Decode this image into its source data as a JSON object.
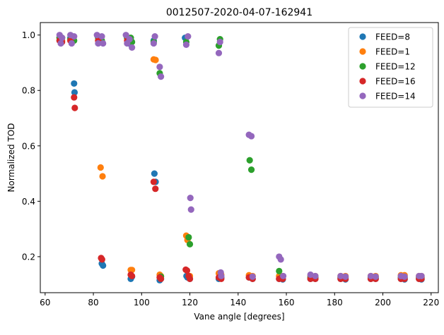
{
  "chart_data": {
    "type": "scatter",
    "title": "0012507-2020-04-07-162941",
    "xlabel": "Vane angle [degrees]",
    "ylabel": "Normalized TOD",
    "xlim": [
      58,
      223
    ],
    "ylim": [
      0.07,
      1.045
    ],
    "xticks": [
      60,
      80,
      100,
      120,
      140,
      160,
      180,
      200,
      220
    ],
    "yticks": [
      0.2,
      0.4,
      0.6,
      0.8,
      1.0
    ],
    "xtick_labels": [
      "60",
      "80",
      "100",
      "120",
      "140",
      "160",
      "180",
      "200",
      "220"
    ],
    "ytick_labels": [
      "0.2",
      "0.4",
      "0.6",
      "0.8",
      "1.0"
    ],
    "grid": false,
    "legend_position": "top-right",
    "series": [
      {
        "name": "FEED=8",
        "color": "#1f77b4",
        "points": [
          [
            66,
            0.98
          ],
          [
            66.5,
            0.99
          ],
          [
            70.5,
            0.99
          ],
          [
            71,
            0.98
          ],
          [
            72,
            0.825
          ],
          [
            72.2,
            0.793
          ],
          [
            82,
            0.99
          ],
          [
            83.2,
            0.98
          ],
          [
            83.5,
            0.175
          ],
          [
            84,
            0.168
          ],
          [
            94,
            0.99
          ],
          [
            94.5,
            0.97
          ],
          [
            95.5,
            0.12
          ],
          [
            96,
            0.128
          ],
          [
            105,
            0.98
          ],
          [
            105.3,
            0.5
          ],
          [
            105.8,
            0.47
          ],
          [
            107.5,
            0.115
          ],
          [
            108,
            0.12
          ],
          [
            118,
            0.99
          ],
          [
            118.6,
            0.13
          ],
          [
            119,
            0.125
          ],
          [
            120,
            0.12
          ],
          [
            132,
            0.12
          ],
          [
            133,
            0.125
          ],
          [
            144.5,
            0.125
          ],
          [
            146,
            0.12
          ],
          [
            157,
            0.12
          ],
          [
            158.5,
            0.118
          ],
          [
            170,
            0.12
          ],
          [
            172,
            0.12
          ],
          [
            182.5,
            0.12
          ],
          [
            184.5,
            0.118
          ],
          [
            195,
            0.12
          ],
          [
            197,
            0.12
          ],
          [
            207.5,
            0.12
          ],
          [
            209,
            0.118
          ],
          [
            215,
            0.12
          ],
          [
            216,
            0.118
          ]
        ]
      },
      {
        "name": "FEED=1",
        "color": "#ff7f0e",
        "points": [
          [
            66,
            0.99
          ],
          [
            67,
            0.98
          ],
          [
            70.5,
            0.98
          ],
          [
            71.5,
            0.99
          ],
          [
            82,
            0.98
          ],
          [
            83,
            0.522
          ],
          [
            83.8,
            0.49
          ],
          [
            94,
            0.99
          ],
          [
            95.5,
            0.152
          ],
          [
            96,
            0.152
          ],
          [
            105,
            0.912
          ],
          [
            105.8,
            0.91
          ],
          [
            107.5,
            0.135
          ],
          [
            108,
            0.13
          ],
          [
            118.5,
            0.276
          ],
          [
            119,
            0.26
          ],
          [
            120,
            0.13
          ],
          [
            132,
            0.14
          ],
          [
            133,
            0.135
          ],
          [
            144.5,
            0.133
          ],
          [
            146,
            0.13
          ],
          [
            157,
            0.13
          ],
          [
            158.5,
            0.13
          ],
          [
            170,
            0.13
          ],
          [
            172,
            0.13
          ],
          [
            182.5,
            0.13
          ],
          [
            184.5,
            0.13
          ],
          [
            195,
            0.13
          ],
          [
            197,
            0.13
          ],
          [
            207.5,
            0.133
          ],
          [
            209,
            0.133
          ],
          [
            215,
            0.13
          ],
          [
            216,
            0.13
          ]
        ]
      },
      {
        "name": "FEED=12",
        "color": "#2ca02c",
        "points": [
          [
            66,
            0.99
          ],
          [
            67,
            0.99
          ],
          [
            70.5,
            0.985
          ],
          [
            72,
            0.98
          ],
          [
            82,
            0.99
          ],
          [
            83.5,
            0.98
          ],
          [
            94,
            0.99
          ],
          [
            95.5,
            0.99
          ],
          [
            96,
            0.975
          ],
          [
            105,
            0.975
          ],
          [
            107.5,
            0.862
          ],
          [
            108,
            0.128
          ],
          [
            118.5,
            0.975
          ],
          [
            119.5,
            0.27
          ],
          [
            120,
            0.245
          ],
          [
            132,
            0.962
          ],
          [
            132.5,
            0.985
          ],
          [
            144.8,
            0.548
          ],
          [
            145.5,
            0.514
          ],
          [
            157,
            0.148
          ],
          [
            158,
            0.125
          ],
          [
            170,
            0.125
          ],
          [
            172,
            0.125
          ],
          [
            182.5,
            0.125
          ],
          [
            184.5,
            0.125
          ],
          [
            195,
            0.125
          ],
          [
            197,
            0.125
          ],
          [
            207.5,
            0.125
          ],
          [
            209,
            0.125
          ],
          [
            215,
            0.125
          ],
          [
            216,
            0.125
          ]
        ]
      },
      {
        "name": "FEED=16",
        "color": "#d62728",
        "points": [
          [
            66,
            0.98
          ],
          [
            67,
            0.975
          ],
          [
            70.5,
            0.98
          ],
          [
            72,
            0.775
          ],
          [
            72.3,
            0.737
          ],
          [
            82,
            0.98
          ],
          [
            83.2,
            0.195
          ],
          [
            83.6,
            0.19
          ],
          [
            94,
            0.98
          ],
          [
            95.5,
            0.135
          ],
          [
            96,
            0.13
          ],
          [
            105,
            0.47
          ],
          [
            105.7,
            0.445
          ],
          [
            107.5,
            0.125
          ],
          [
            108,
            0.12
          ],
          [
            118.3,
            0.153
          ],
          [
            118.8,
            0.15
          ],
          [
            119.5,
            0.13
          ],
          [
            120,
            0.12
          ],
          [
            132,
            0.125
          ],
          [
            133,
            0.12
          ],
          [
            144.5,
            0.125
          ],
          [
            146,
            0.12
          ],
          [
            157,
            0.12
          ],
          [
            158.5,
            0.12
          ],
          [
            170,
            0.12
          ],
          [
            172,
            0.12
          ],
          [
            182.5,
            0.12
          ],
          [
            184.5,
            0.12
          ],
          [
            195,
            0.12
          ],
          [
            197,
            0.12
          ],
          [
            207.5,
            0.12
          ],
          [
            209,
            0.12
          ],
          [
            215,
            0.12
          ],
          [
            216,
            0.12
          ]
        ]
      },
      {
        "name": "FEED=14",
        "color": "#9467bd",
        "points": [
          [
            66,
            1.0
          ],
          [
            66.5,
            0.97
          ],
          [
            67,
            0.99
          ],
          [
            70.5,
            1.0
          ],
          [
            71,
            0.97
          ],
          [
            72,
            0.995
          ],
          [
            81.5,
            1.0
          ],
          [
            82,
            0.97
          ],
          [
            83.5,
            0.995
          ],
          [
            84,
            0.97
          ],
          [
            93.5,
            1.0
          ],
          [
            94,
            0.97
          ],
          [
            95,
            0.985
          ],
          [
            96,
            0.955
          ],
          [
            105,
            0.97
          ],
          [
            105.5,
            0.995
          ],
          [
            107.5,
            0.885
          ],
          [
            108,
            0.85
          ],
          [
            118.5,
            0.965
          ],
          [
            119.2,
            0.995
          ],
          [
            120.2,
            0.412
          ],
          [
            120.5,
            0.37
          ],
          [
            132,
            0.935
          ],
          [
            132.5,
            0.975
          ],
          [
            132.8,
            0.143
          ],
          [
            133,
            0.13
          ],
          [
            144.5,
            0.64
          ],
          [
            145.5,
            0.635
          ],
          [
            146,
            0.128
          ],
          [
            157,
            0.2
          ],
          [
            157.7,
            0.19
          ],
          [
            158.7,
            0.13
          ],
          [
            170,
            0.135
          ],
          [
            172,
            0.13
          ],
          [
            182.5,
            0.13
          ],
          [
            184.5,
            0.128
          ],
          [
            195,
            0.13
          ],
          [
            197,
            0.128
          ],
          [
            207.5,
            0.13
          ],
          [
            209,
            0.128
          ],
          [
            215,
            0.13
          ],
          [
            216,
            0.13
          ]
        ]
      }
    ]
  }
}
